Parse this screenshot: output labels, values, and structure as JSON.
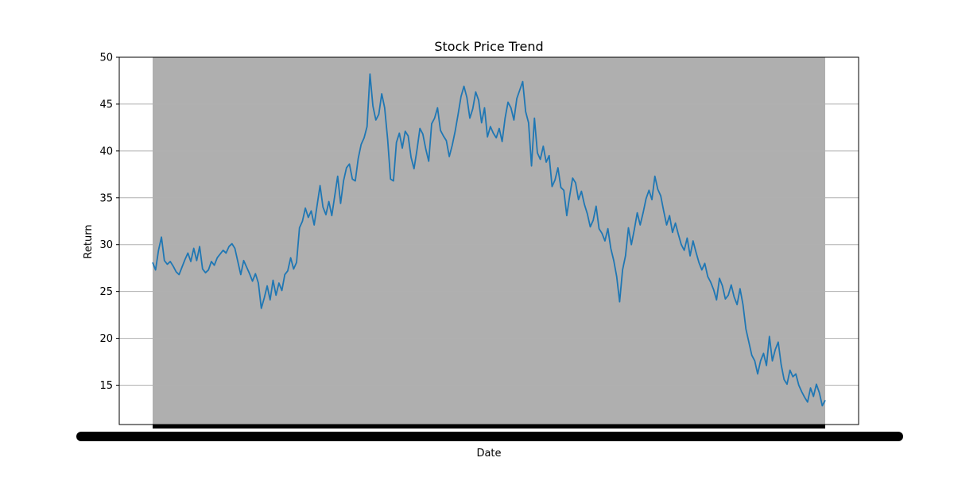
{
  "chart_data": {
    "type": "line",
    "title": "Stock Price Trend",
    "xlabel": "Date",
    "ylabel": "Return",
    "ylim": [
      10.8,
      50
    ],
    "yticks": [
      15,
      20,
      25,
      30,
      35,
      40,
      45,
      50
    ],
    "grid": "y",
    "legend": "none",
    "colors": {
      "line": "#1f77b4",
      "plot_bg": "#afafaf",
      "grid": "#b0b0b0"
    },
    "series": [
      {
        "values": [
          28.1,
          27.3,
          29.4,
          30.8,
          28.3,
          27.9,
          28.2,
          27.7,
          27.1,
          26.8,
          27.6,
          28.4,
          29.1,
          28.2,
          29.6,
          28.3,
          29.8,
          27.4,
          27.0,
          27.3,
          28.2,
          27.8,
          28.6,
          29.0,
          29.4,
          29.1,
          29.8,
          30.1,
          29.6,
          28.2,
          26.8,
          28.3,
          27.6,
          26.9,
          26.1,
          26.9,
          25.9,
          23.2,
          24.3,
          25.6,
          24.1,
          26.2,
          24.6,
          25.9,
          25.1,
          26.8,
          27.2,
          28.6,
          27.4,
          28.1,
          31.8,
          32.5,
          33.9,
          32.9,
          33.6,
          32.1,
          34.2,
          36.3,
          34.0,
          33.2,
          34.6,
          33.1,
          35.2,
          37.3,
          34.4,
          36.8,
          38.2,
          38.6,
          37.0,
          36.8,
          39.2,
          40.7,
          41.4,
          42.6,
          48.2,
          44.8,
          43.3,
          43.9,
          46.1,
          44.6,
          41.3,
          37.0,
          36.8,
          40.9,
          41.9,
          40.3,
          42.1,
          41.6,
          39.3,
          38.1,
          40.1,
          42.4,
          41.8,
          40.2,
          38.9,
          42.9,
          43.5,
          44.6,
          42.2,
          41.6,
          41.1,
          39.4,
          40.6,
          42.1,
          43.9,
          45.8,
          46.9,
          45.7,
          43.5,
          44.5,
          46.3,
          45.4,
          43.0,
          44.6,
          41.5,
          42.6,
          41.9,
          41.4,
          42.4,
          41.0,
          43.5,
          45.2,
          44.6,
          43.3,
          45.6,
          46.5,
          47.4,
          44.2,
          43.0,
          38.4,
          43.5,
          39.8,
          39.1,
          40.5,
          38.8,
          39.5,
          36.2,
          36.9,
          38.2,
          36.1,
          35.8,
          33.1,
          35.2,
          37.1,
          36.6,
          34.8,
          35.7,
          34.3,
          33.3,
          31.9,
          32.6,
          34.1,
          31.7,
          31.2,
          30.4,
          31.7,
          29.6,
          28.3,
          26.6,
          23.9,
          27.3,
          28.8,
          31.8,
          30.0,
          31.6,
          33.4,
          32.1,
          33.4,
          34.9,
          35.8,
          34.8,
          37.3,
          35.9,
          35.2,
          33.6,
          32.1,
          33.1,
          31.3,
          32.3,
          31.1,
          30.0,
          29.4,
          30.7,
          28.8,
          30.4,
          29.2,
          28.1,
          27.3,
          28.0,
          26.6,
          26.0,
          25.2,
          24.1,
          26.4,
          25.6,
          24.2,
          24.6,
          25.7,
          24.4,
          23.6,
          25.3,
          23.6,
          21.0,
          19.6,
          18.2,
          17.6,
          16.2,
          17.6,
          18.4,
          17.1,
          20.2,
          17.6,
          18.8,
          19.6,
          17.2,
          15.6,
          15.1,
          16.6,
          15.9,
          16.2,
          15.0,
          14.3,
          13.7,
          13.2,
          14.7,
          13.8,
          15.1,
          14.2,
          12.8,
          13.4
        ]
      }
    ]
  }
}
